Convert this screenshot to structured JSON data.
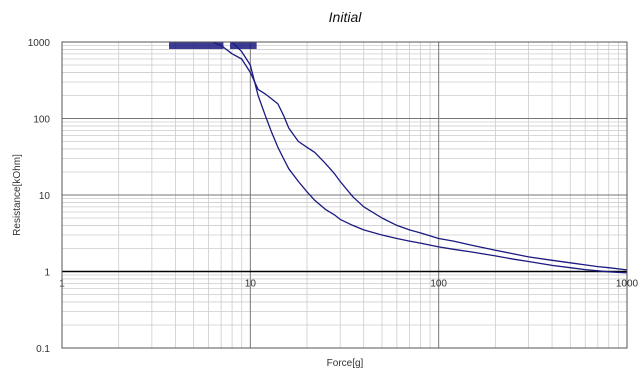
{
  "chart_data": {
    "type": "line",
    "title": "Initial",
    "xlabel": "Force[g]",
    "ylabel": "Resistance[kOhm]",
    "x_scale": "log",
    "y_scale": "log",
    "xlim": [
      1,
      1000
    ],
    "ylim": [
      0.1,
      1000
    ],
    "x_ticks": [
      1,
      10,
      100,
      1000
    ],
    "x_tick_labels": [
      "1",
      "10",
      "100",
      "1000"
    ],
    "y_ticks": [
      0.1,
      1,
      10,
      100,
      1000
    ],
    "y_tick_labels": [
      "0.1",
      "1",
      "10",
      "100",
      "1000"
    ],
    "grid": true,
    "legend": "none",
    "colors": {
      "line": "#1a1a80",
      "major_grid": "#777777",
      "minor_grid": "#cccccc",
      "unity_line": "#000000"
    },
    "series": [
      {
        "x": [
          6.3,
          7,
          8,
          9,
          10,
          11,
          12,
          13,
          14,
          15,
          16,
          18,
          20,
          22,
          25,
          28,
          30,
          35,
          40,
          50,
          60,
          70,
          80,
          100,
          120,
          150,
          200,
          250,
          300,
          400,
          500,
          600,
          700,
          800,
          1000
        ],
        "y": [
          1000,
          900,
          700,
          600,
          400,
          240,
          210,
          180,
          155,
          110,
          75,
          50,
          42,
          36,
          26,
          19,
          15,
          9.5,
          7,
          5,
          4,
          3.5,
          3.2,
          2.7,
          2.5,
          2.2,
          1.9,
          1.7,
          1.55,
          1.4,
          1.3,
          1.22,
          1.16,
          1.12,
          1.05
        ]
      },
      {
        "x": [
          8,
          9,
          10,
          11,
          12,
          13,
          14,
          15,
          16,
          18,
          20,
          22,
          25,
          28,
          30,
          35,
          40,
          50,
          60,
          70,
          80,
          100,
          120,
          150,
          200,
          250,
          300,
          400,
          500,
          600,
          700,
          800,
          1000
        ],
        "y": [
          1000,
          750,
          500,
          200,
          110,
          65,
          42,
          30,
          22,
          15,
          11,
          8.5,
          6.5,
          5.5,
          4.8,
          4,
          3.5,
          3,
          2.7,
          2.5,
          2.35,
          2.1,
          1.95,
          1.8,
          1.6,
          1.45,
          1.35,
          1.2,
          1.12,
          1.06,
          1.02,
          0.99,
          0.96
        ]
      }
    ],
    "saturation_band": {
      "y": 1000,
      "x_ranges": [
        [
          3.7,
          7.2
        ],
        [
          7.8,
          10.8
        ]
      ]
    }
  }
}
